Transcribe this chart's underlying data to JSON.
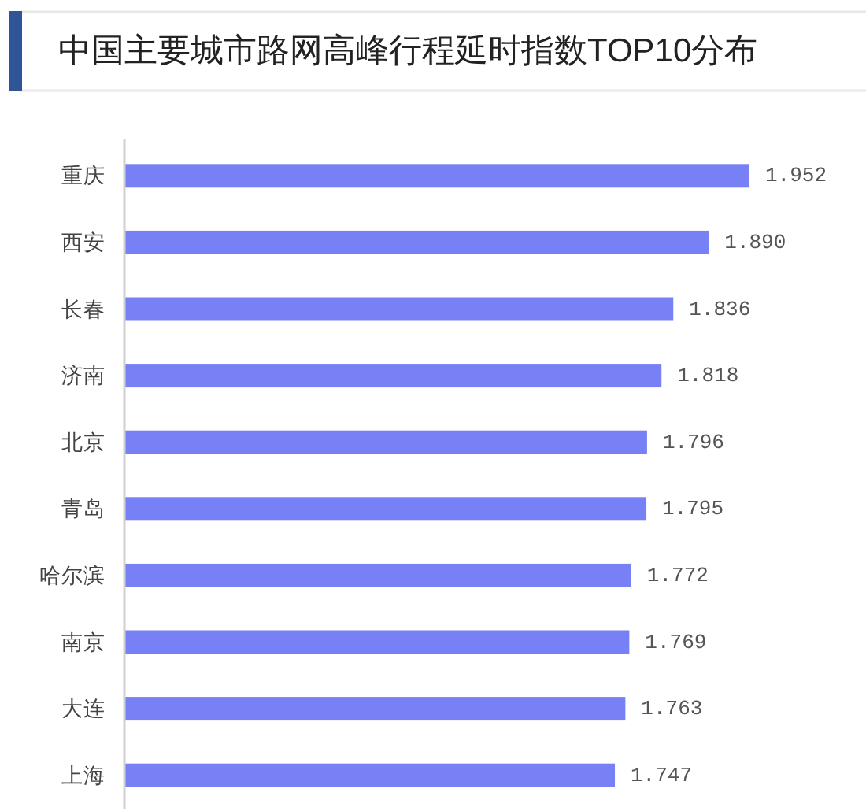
{
  "chart_data": {
    "type": "bar",
    "orientation": "horizontal",
    "title": "中国主要城市路网高峰行程延时指数TOP10分布",
    "categories": [
      "重庆",
      "西安",
      "长春",
      "济南",
      "北京",
      "青岛",
      "哈尔滨",
      "南京",
      "大连",
      "上海"
    ],
    "values": [
      1.952,
      1.89,
      1.836,
      1.818,
      1.796,
      1.795,
      1.772,
      1.769,
      1.763,
      1.747
    ],
    "value_labels": [
      "1.952",
      "1.890",
      "1.836",
      "1.818",
      "1.796",
      "1.795",
      "1.772",
      "1.769",
      "1.763",
      "1.747"
    ],
    "color": "#7880f6",
    "xlim": [
      1,
      1.952
    ]
  }
}
